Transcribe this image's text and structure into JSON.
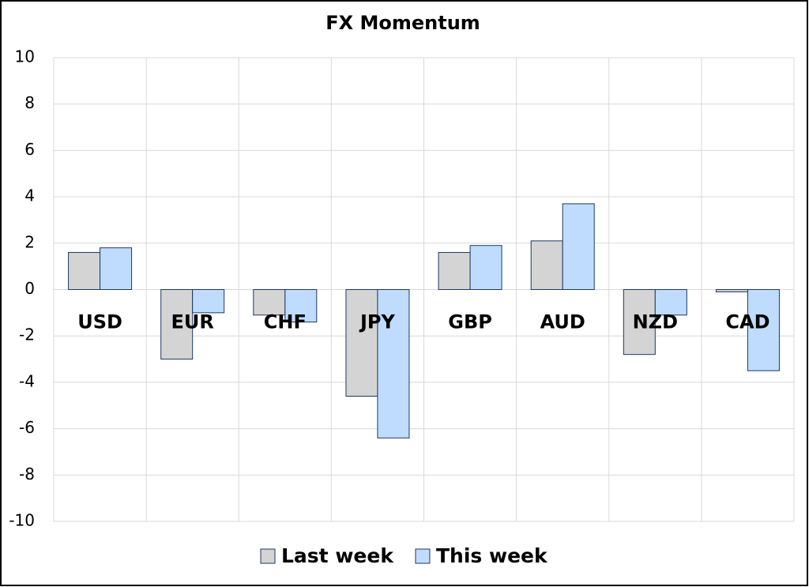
{
  "chart_data": {
    "type": "bar",
    "title": "FX Momentum",
    "categories": [
      "USD",
      "EUR",
      "CHF",
      "JPY",
      "GBP",
      "AUD",
      "NZD",
      "CAD"
    ],
    "series": [
      {
        "name": "Last week",
        "color": "#d4d4d4",
        "values": [
          1.6,
          -3.0,
          -1.1,
          -4.6,
          1.6,
          2.1,
          -2.8,
          -0.1
        ]
      },
      {
        "name": "This week",
        "color": "#bfdcff",
        "values": [
          1.8,
          -1.0,
          -1.4,
          -6.4,
          1.9,
          3.7,
          -1.1,
          -3.5
        ]
      }
    ],
    "ylim": [
      -10,
      10
    ],
    "yticks": [
      -10,
      -8,
      -6,
      -4,
      -2,
      0,
      2,
      4,
      6,
      8,
      10
    ],
    "grid": true
  }
}
